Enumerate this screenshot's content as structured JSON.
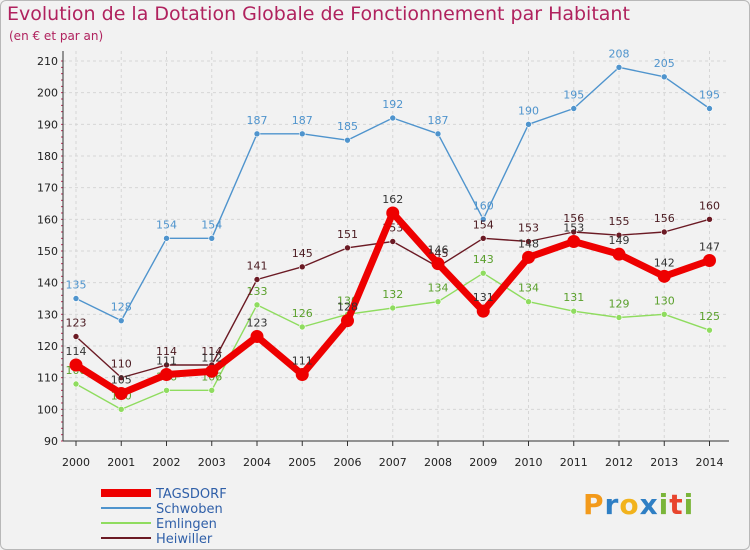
{
  "chart_data": {
    "type": "line",
    "title": "Evolution de la Dotation Globale de Fonctionnement par Habitant",
    "subtitle": "(en € et par an)",
    "x": [
      "2000",
      "2001",
      "2002",
      "2003",
      "2004",
      "2005",
      "2006",
      "2007",
      "2008",
      "2009",
      "2010",
      "2011",
      "2012",
      "2013",
      "2014"
    ],
    "ylim": [
      90,
      210
    ],
    "yticks": [
      90,
      100,
      110,
      120,
      130,
      140,
      150,
      160,
      170,
      180,
      190,
      200,
      210
    ],
    "grid": true,
    "legend_position": "bottom-left",
    "series": [
      {
        "name": "TAGSDORF",
        "color": "#ee0000",
        "values": [
          114,
          105,
          111,
          112,
          123,
          111,
          128,
          162,
          146,
          131,
          148,
          153,
          149,
          142,
          147
        ]
      },
      {
        "name": "Schwoben",
        "color": "#4f94cd",
        "values": [
          135,
          128,
          154,
          154,
          187,
          187,
          185,
          192,
          187,
          160,
          190,
          195,
          208,
          205,
          195
        ]
      },
      {
        "name": "Emlingen",
        "color": "#8fdc5f",
        "values": [
          108,
          100,
          106,
          106,
          133,
          126,
          130,
          132,
          134,
          143,
          134,
          131,
          129,
          130,
          125
        ]
      },
      {
        "name": "Heiwiller",
        "color": "#6b1a24",
        "values": [
          123,
          110,
          114,
          114,
          141,
          145,
          151,
          153,
          145,
          154,
          153,
          156,
          155,
          156,
          160
        ]
      }
    ]
  },
  "logo": {
    "text": "Proxiti"
  }
}
